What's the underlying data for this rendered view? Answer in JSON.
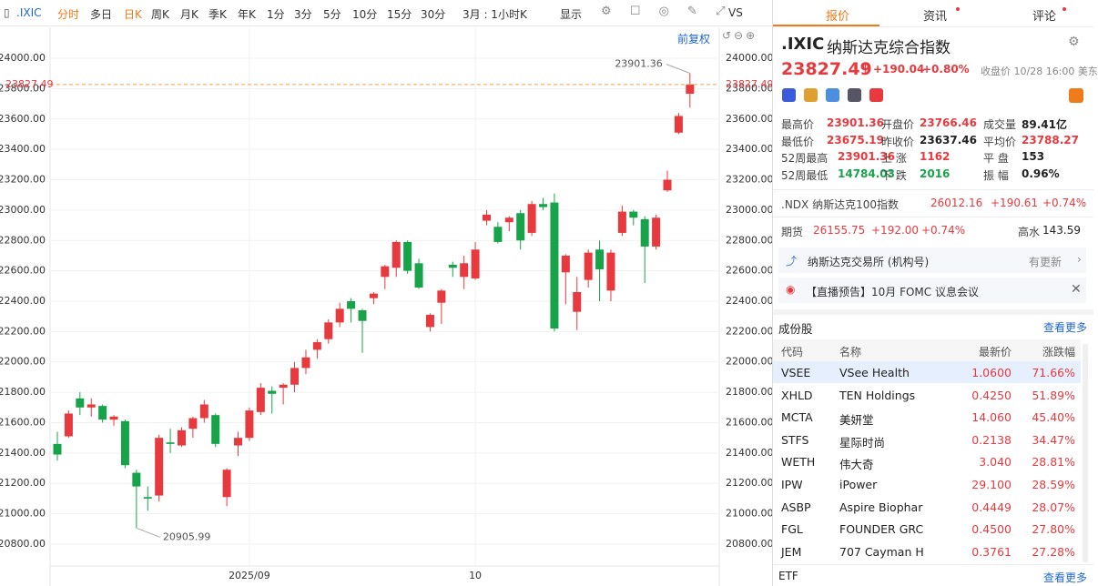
{
  "toolbar": {
    "symbol": ".IXIC",
    "items": [
      "分时",
      "多日",
      "日K",
      "周K",
      "月K",
      "季K",
      "年K",
      "1分",
      "3分",
      "5分",
      "10分",
      "15分",
      "30分",
      "3月 : 1小时K",
      "显示",
      "VS"
    ],
    "adjust": "前复权"
  },
  "chart_data": {
    "type": "candlestick",
    "up_color": "#e8393e",
    "down_color": "#17a34a",
    "categories": [
      null,
      null,
      null,
      null,
      null,
      null,
      null,
      null,
      null,
      null,
      null,
      null,
      null,
      null,
      null,
      null,
      null,
      "2025/09",
      null,
      null,
      null,
      null,
      null,
      null,
      null,
      null,
      null,
      null,
      null,
      null,
      null,
      null,
      null,
      null,
      null,
      null,
      null,
      "10",
      null,
      null,
      null,
      null,
      null,
      null,
      null,
      null,
      null,
      null,
      null,
      null,
      null,
      null,
      null,
      null,
      null,
      null,
      null
    ],
    "open": [
      21460,
      21510,
      21760,
      21700,
      21710,
      21620,
      21610,
      21270,
      21110,
      21120,
      21470,
      21450,
      21560,
      21630,
      21650,
      21110,
      21450,
      21500,
      21670,
      21810,
      21830,
      21850,
      21960,
      22080,
      22150,
      22260,
      22400,
      22340,
      22420,
      22560,
      22620,
      22790,
      22650,
      22230,
      22390,
      22640,
      22560,
      22550,
      22930,
      22890,
      22920,
      22980,
      22850,
      23040,
      23050,
      22590,
      22330,
      22540,
      22740,
      22470,
      22850,
      22990,
      22940,
      22760,
      23130,
      23510,
      23766.46
    ],
    "close": [
      21390,
      21660,
      21700,
      21720,
      21620,
      21640,
      21320,
      21180,
      21100,
      21500,
      21460,
      21550,
      21630,
      21720,
      21460,
      21290,
      21500,
      21680,
      21830,
      21790,
      21850,
      21960,
      22030,
      22130,
      22260,
      22350,
      22350,
      22270,
      22450,
      22630,
      22790,
      22600,
      22490,
      22310,
      22470,
      22620,
      22650,
      22740,
      22970,
      22790,
      22950,
      22800,
      23040,
      23020,
      22220,
      22700,
      22460,
      22720,
      22610,
      22720,
      22990,
      22950,
      22760,
      22950,
      23200,
      23620,
      23827.49
    ],
    "high": [
      21540,
      21680,
      21800,
      21760,
      21720,
      21650,
      21620,
      21290,
      21180,
      21520,
      21560,
      21570,
      21640,
      21750,
      21660,
      21300,
      21540,
      21700,
      21860,
      21840,
      21860,
      22000,
      22080,
      22150,
      22280,
      22390,
      22420,
      22350,
      22460,
      22640,
      22800,
      22800,
      22680,
      22320,
      22480,
      22660,
      22700,
      22790,
      23000,
      22920,
      22960,
      23000,
      23060,
      23080,
      23110,
      22710,
      22560,
      22740,
      22800,
      22740,
      23030,
      23000,
      22960,
      22970,
      23260,
      23640,
      23901.36
    ],
    "low": [
      21350,
      21500,
      21650,
      21640,
      21600,
      21580,
      21300,
      20905.99,
      21020,
      21080,
      21400,
      21440,
      21500,
      21600,
      21440,
      21050,
      21380,
      21480,
      21650,
      21660,
      21720,
      21800,
      21920,
      22020,
      22120,
      22230,
      22260,
      22060,
      22380,
      22480,
      22560,
      22580,
      22480,
      22200,
      22250,
      22560,
      22480,
      22540,
      22900,
      22780,
      22860,
      22740,
      22830,
      23000,
      22200,
      22380,
      22210,
      22490,
      22400,
      22400,
      22830,
      22900,
      22520,
      22740,
      23120,
      23500,
      23675.19
    ],
    "ylim": [
      20668,
      24204
    ],
    "yticks": [
      {
        "value": 20800,
        "label": "20800.00"
      },
      {
        "value": 21000,
        "label": "21000.00"
      },
      {
        "value": 21200,
        "label": "21200.00"
      },
      {
        "value": 21400,
        "label": "21400.00"
      },
      {
        "value": 21600,
        "label": "21600.00"
      },
      {
        "value": 21800,
        "label": "21800.00"
      },
      {
        "value": 22000,
        "label": "22000.00"
      },
      {
        "value": 22200,
        "label": "22200.00"
      },
      {
        "value": 22400,
        "label": "22400.00"
      },
      {
        "value": 22600,
        "label": "22600.00"
      },
      {
        "value": 22800,
        "label": "22800.00"
      },
      {
        "value": 23000,
        "label": "23000.00"
      },
      {
        "value": 23200,
        "label": "23200.00"
      },
      {
        "value": 23400,
        "label": "23400.00"
      },
      {
        "value": 23600,
        "label": "23600.00"
      },
      {
        "value": 23800,
        "label": "23800.00"
      },
      {
        "value": 24000,
        "label": "24000.00"
      }
    ],
    "grid": true
  },
  "panel": {
    "tabs": [
      "报价",
      "资讯",
      "评论"
    ],
    "symbol": ".IXIC",
    "name": "纳斯达克综合指数",
    "price": "23827.49",
    "change": "+190.04",
    "change_pct": "+0.80%",
    "status": "收盘价 10/28 16:00 美东",
    "stats": [
      [
        {
          "label": "最高价",
          "value": "23901.36",
          "color": "#e8393e"
        },
        {
          "label": "开盘价",
          "value": "23766.46",
          "color": "#e8393e"
        },
        {
          "label": "成交量",
          "value": "89.41亿",
          "color": "#222"
        }
      ],
      [
        {
          "label": "最低价",
          "value": "23675.19",
          "color": "#e8393e"
        },
        {
          "label": "昨收价",
          "value": "23637.46",
          "color": "#222"
        },
        {
          "label": "平均价",
          "value": "23788.27",
          "color": "#e8393e"
        }
      ],
      [
        {
          "label": "52周最高",
          "value": "23901.36",
          "color": "#e8393e"
        },
        {
          "label": "上 涨",
          "value": "1162",
          "color": "#e8393e"
        },
        {
          "label": "平 盘",
          "value": "153",
          "color": "#222"
        }
      ],
      [
        {
          "label": "52周最低",
          "value": "14784.03",
          "color": "#17a34a"
        },
        {
          "label": "下 跌",
          "value": "2016",
          "color": "#17a34a"
        },
        {
          "label": "振 幅",
          "value": "0.96%",
          "color": "#222"
        }
      ]
    ],
    "index_row": {
      "name": ".NDX 纳斯达克100指数",
      "price": "26012.16",
      "change": "+190.61",
      "change_pct": "+0.74%"
    },
    "futures": {
      "label": "期货",
      "price": "26155.75",
      "change": "+192.00",
      "change_pct": "+0.74%",
      "premium_label": "高水",
      "premium": "143.59"
    },
    "exchange": "纳斯达克交易所 (机构号)",
    "exchange_note": "有更新",
    "live": "【直播预告】10月 FOMC 议息会议",
    "constituents": {
      "title": "成份股",
      "more": "查看更多",
      "columns": [
        "代码",
        "名称",
        "最新价",
        "涨跌幅"
      ],
      "rows": [
        [
          "VSEE",
          "VSee Health",
          "1.0600",
          "71.66%"
        ],
        [
          "XHLD",
          "TEN Holdings",
          "0.4250",
          "51.89%"
        ],
        [
          "MCTA",
          "美妍堂",
          "14.060",
          "45.40%"
        ],
        [
          "STFS",
          "星际时尚",
          "0.2138",
          "34.47%"
        ],
        [
          "WETH",
          "伟大奇",
          "3.040",
          "28.81%"
        ],
        [
          "IPW",
          "iPower",
          "29.100",
          "28.59%"
        ],
        [
          "ASBP",
          "Aspire Biophar",
          "0.4449",
          "28.07%"
        ],
        [
          "FGL",
          "FOUNDER GRC",
          "0.4500",
          "27.80%"
        ],
        [
          "JEM",
          "707 Cayman H",
          "0.3761",
          "27.28%"
        ]
      ]
    },
    "etf": {
      "title": "ETF",
      "more": "查看更多"
    }
  }
}
